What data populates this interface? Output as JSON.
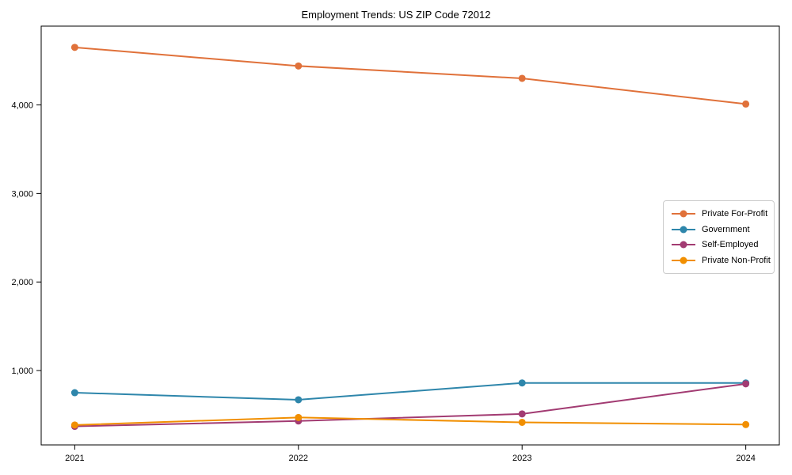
{
  "chart_data": {
    "type": "line",
    "title": "Employment Trends: US ZIP Code 72012",
    "x": [
      2021,
      2022,
      2023,
      2024
    ],
    "x_tick_labels": [
      "2021",
      "2022",
      "2023",
      "2024"
    ],
    "y_ticks": [
      1000,
      2000,
      3000,
      4000
    ],
    "y_tick_labels": [
      "1,000",
      "2,000",
      "3,000",
      "4,000"
    ],
    "xlim": [
      2020.85,
      2024.15
    ],
    "ylim": [
      160,
      4890
    ],
    "xlabel": "",
    "ylabel": "",
    "grid": false,
    "legend_position": "center-right",
    "series": [
      {
        "name": "Private For-Profit",
        "color": "#E0713A",
        "values": [
          4650,
          4440,
          4300,
          4010
        ]
      },
      {
        "name": "Government",
        "color": "#2E86AB",
        "values": [
          750,
          670,
          860,
          860
        ]
      },
      {
        "name": "Self-Employed",
        "color": "#A23B72",
        "values": [
          370,
          430,
          510,
          850
        ]
      },
      {
        "name": "Private Non-Profit",
        "color": "#F18F01",
        "values": [
          385,
          470,
          415,
          390
        ]
      }
    ]
  }
}
